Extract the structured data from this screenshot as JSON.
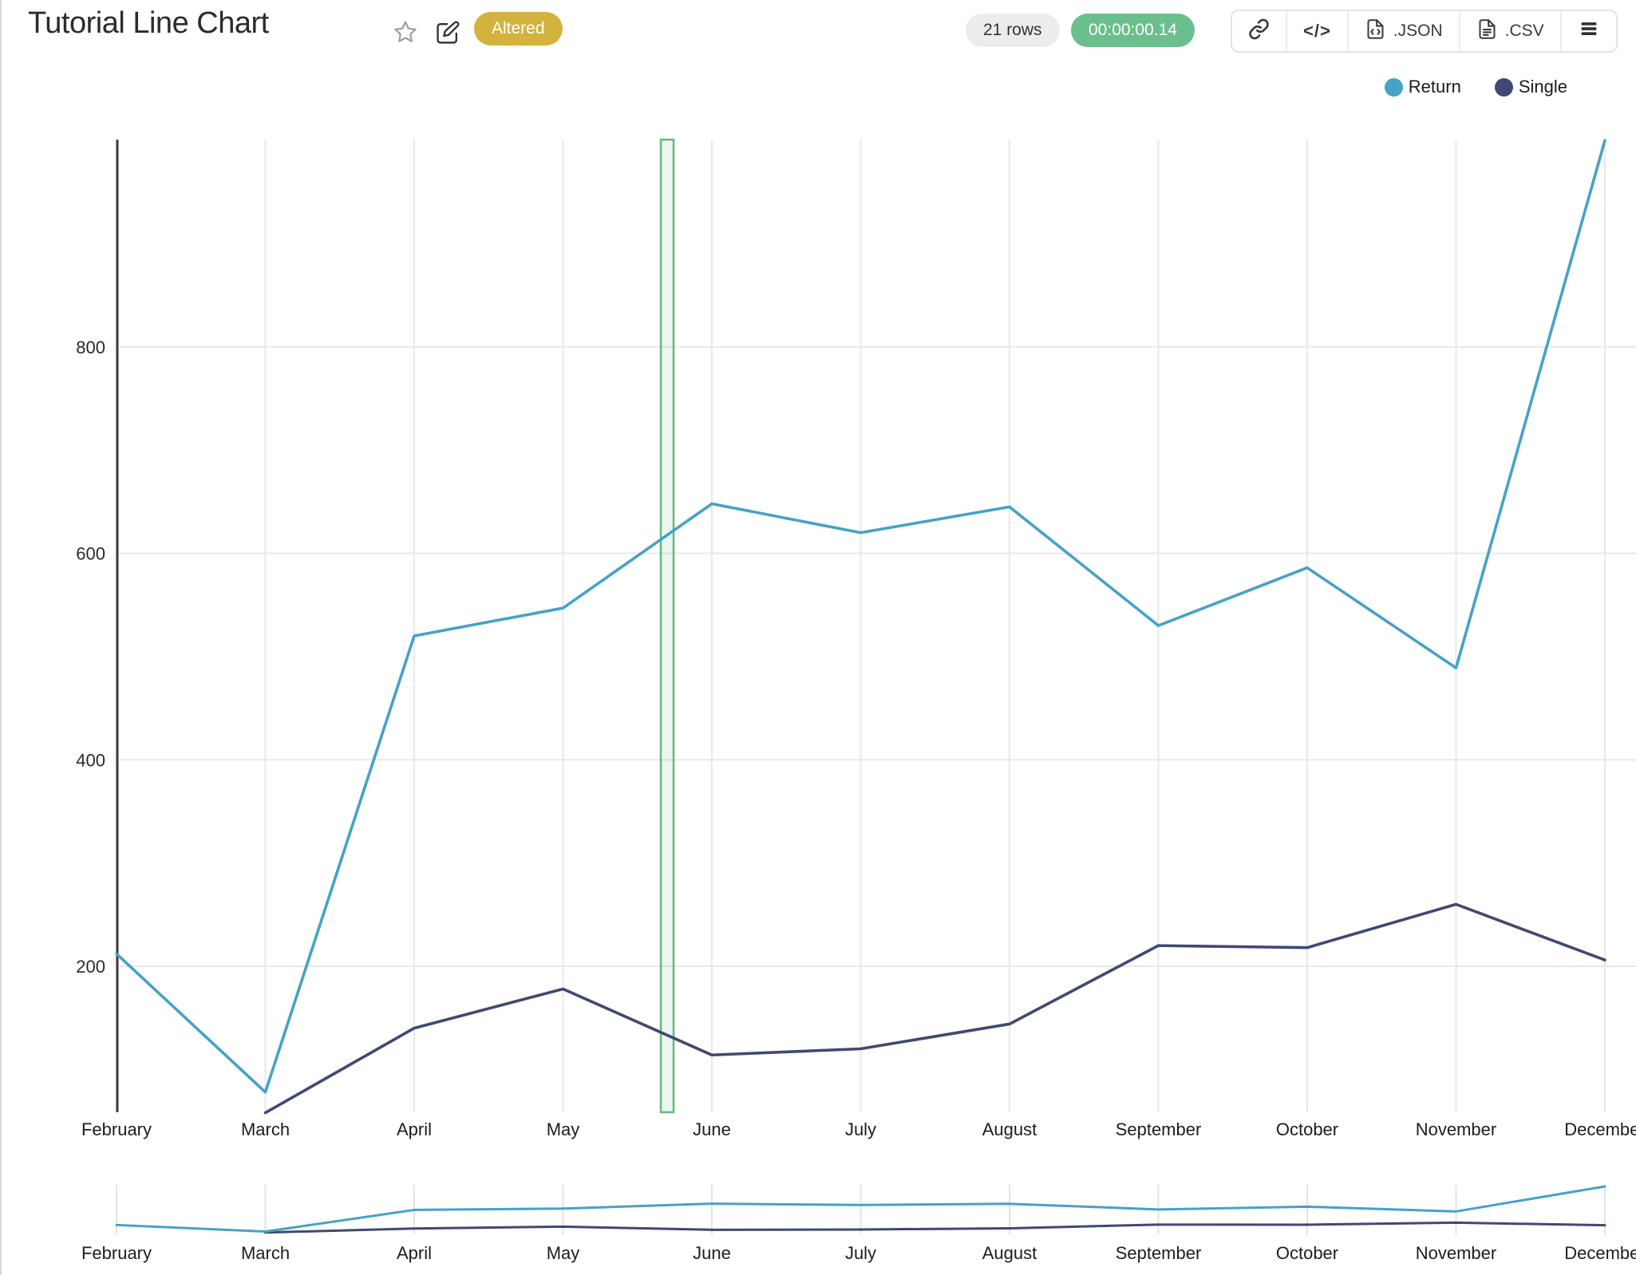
{
  "header": {
    "title": "Tutorial Line Chart",
    "status_badge": "Altered",
    "rows_badge": "21 rows",
    "timer_badge": "00:00:00.14",
    "code_icon_glyph": "</>",
    "export_json_label": ".JSON",
    "export_csv_label": ".CSV"
  },
  "chart_data": {
    "type": "line",
    "categories": [
      "February",
      "March",
      "April",
      "May",
      "June",
      "July",
      "August",
      "September",
      "October",
      "November",
      "December"
    ],
    "series": [
      {
        "name": "Return",
        "color": "#46a2c6",
        "values": [
          212,
          78,
          520,
          547,
          648,
          620,
          645,
          530,
          586,
          489,
          1000
        ]
      },
      {
        "name": "Single",
        "color": "#3f4973",
        "values": [
          null,
          58,
          140,
          178,
          114,
          120,
          144,
          220,
          218,
          260,
          206
        ]
      }
    ],
    "y_ticks": [
      200,
      400,
      600,
      800
    ],
    "ylim": [
      54,
      1000
    ],
    "grid": true,
    "legend_position": "top-right",
    "highlight_band": {
      "from_month": "May",
      "to_month": "June",
      "position_fraction": 0.7,
      "stroke": "#63b97d",
      "fill": "rgba(99,185,125,0.13)"
    },
    "mini_chart": true
  }
}
